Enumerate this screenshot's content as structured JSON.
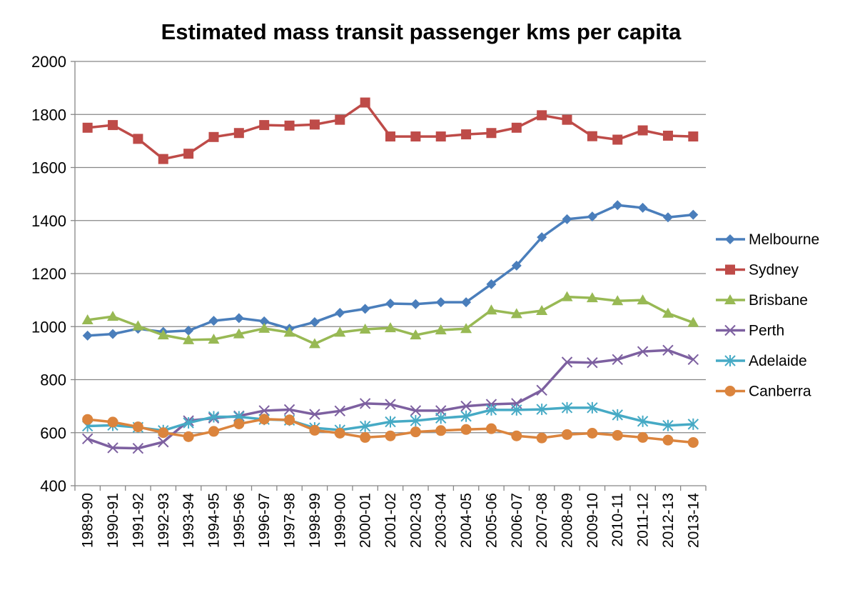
{
  "chart_data": {
    "type": "line",
    "title": "Estimated mass transit passenger kms per capita",
    "xlabel": "",
    "ylabel": "",
    "ylim": [
      400,
      2000
    ],
    "yticks": [
      400,
      600,
      800,
      1000,
      1200,
      1400,
      1600,
      1800,
      2000
    ],
    "grid": true,
    "legend_position": "right",
    "categories": [
      "1989-90",
      "1990-91",
      "1991-92",
      "1992-93",
      "1993-94",
      "1994-95",
      "1995-96",
      "1996-97",
      "1997-98",
      "1998-99",
      "1999-00",
      "2000-01",
      "2001-02",
      "2002-03",
      "2003-04",
      "2004-05",
      "2005-06",
      "2006-07",
      "2007-08",
      "2008-09",
      "2009-10",
      "2010-11",
      "2011-12",
      "2012-13",
      "2013-14"
    ],
    "series": [
      {
        "name": "Melbourne",
        "color": "#4A7EBB",
        "marker": "diamond",
        "values": [
          966,
          972,
          992,
          980,
          985,
          1022,
          1032,
          1020,
          992,
          1017,
          1052,
          1067,
          1087,
          1085,
          1092,
          1092,
          1160,
          1230,
          1337,
          1405,
          1415,
          1458,
          1448,
          1412,
          1422
        ]
      },
      {
        "name": "Sydney",
        "color": "#BE4B48",
        "marker": "square",
        "values": [
          1750,
          1760,
          1708,
          1632,
          1652,
          1715,
          1730,
          1760,
          1758,
          1762,
          1780,
          1845,
          1717,
          1717,
          1717,
          1725,
          1730,
          1750,
          1797,
          1780,
          1718,
          1705,
          1740,
          1720,
          1717
        ]
      },
      {
        "name": "Brisbane",
        "color": "#98B954",
        "marker": "triangle",
        "values": [
          1025,
          1038,
          1002,
          968,
          950,
          952,
          972,
          993,
          978,
          935,
          978,
          990,
          995,
          968,
          987,
          992,
          1062,
          1048,
          1060,
          1112,
          1108,
          1097,
          1100,
          1050,
          1015
        ]
      },
      {
        "name": "Perth",
        "color": "#7D60A0",
        "marker": "x",
        "values": [
          577,
          543,
          541,
          565,
          645,
          655,
          663,
          683,
          687,
          669,
          682,
          710,
          707,
          683,
          683,
          700,
          707,
          710,
          760,
          866,
          864,
          876,
          906,
          911,
          876
        ]
      },
      {
        "name": "Adelaide",
        "color": "#46AAC5",
        "marker": "star",
        "values": [
          625,
          628,
          620,
          608,
          637,
          660,
          660,
          650,
          647,
          618,
          610,
          624,
          641,
          645,
          655,
          662,
          686,
          686,
          688,
          694,
          694,
          667,
          643,
          627,
          632
        ]
      },
      {
        "name": "Canberra",
        "color": "#DB843D",
        "marker": "circle",
        "values": [
          650,
          640,
          622,
          600,
          585,
          605,
          633,
          651,
          648,
          609,
          598,
          582,
          588,
          603,
          608,
          612,
          615,
          588,
          580,
          593,
          598,
          590,
          582,
          572,
          563
        ]
      }
    ]
  }
}
